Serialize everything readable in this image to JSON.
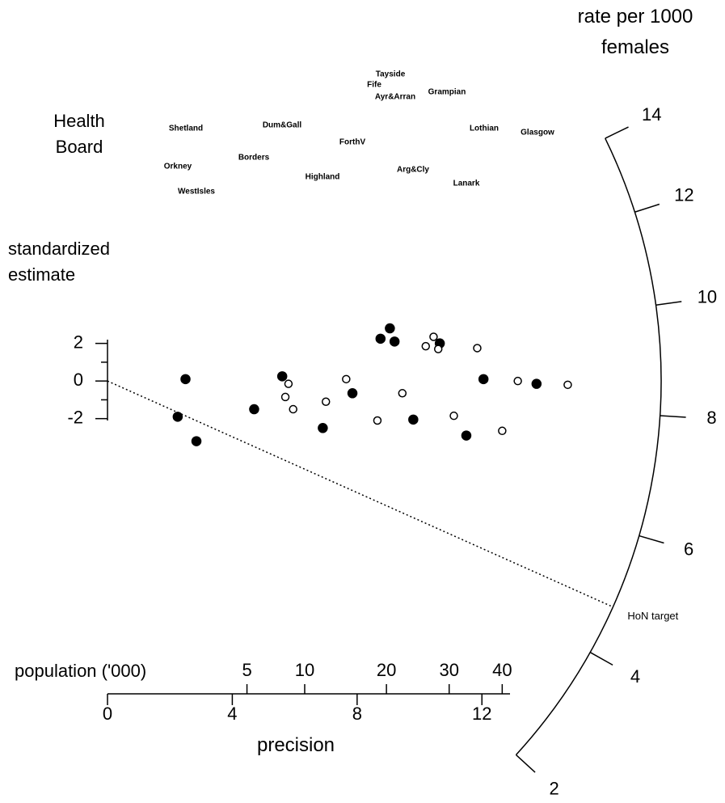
{
  "chart_data": {
    "type": "radial",
    "title": "rate per 1000 females",
    "row_label": "Health Board",
    "ylabel": "standardized estimate",
    "xlabel": "precision",
    "x2label": "population ('000)",
    "categories": [
      "Shetland",
      "Orkney",
      "WestIsles",
      "Borders",
      "Dum&Gall",
      "Highland",
      "ForthV",
      "Fife",
      "Tayside",
      "Ayr&Arran",
      "Arg&Cly",
      "Grampian",
      "Lanark",
      "Lothian",
      "Glasgow"
    ],
    "series": [
      {
        "marker": "filled",
        "color": "#000000",
        "x": [
          2.25,
          2.5,
          2.85,
          4.7,
          5.6,
          6.9,
          7.85,
          8.75,
          9.05,
          9.2,
          9.8,
          10.65,
          11.5,
          12.05,
          13.75
        ],
        "values": [
          -1.9,
          0.1,
          -3.2,
          -1.5,
          0.25,
          -2.5,
          -0.65,
          2.25,
          2.8,
          2.1,
          -2.05,
          2.0,
          -2.9,
          0.1,
          -0.15
        ]
      },
      {
        "marker": "open",
        "color": "#000000",
        "x": [
          5.8,
          5.7,
          5.95,
          7.0,
          7.65,
          8.65,
          9.45,
          10.2,
          10.45,
          10.6,
          11.1,
          11.85,
          12.65,
          13.15,
          14.75
        ],
        "values": [
          -0.15,
          -0.85,
          -1.5,
          -1.1,
          0.1,
          -2.1,
          -0.65,
          1.85,
          2.35,
          1.7,
          -1.85,
          1.75,
          -2.65,
          0.0,
          -0.2
        ]
      }
    ],
    "xlim": [
      0,
      12.9
    ],
    "xticks": [
      0,
      4,
      8,
      12
    ],
    "x2ticks": [
      {
        "value": 4.47,
        "label": "5"
      },
      {
        "value": 6.32,
        "label": "10"
      },
      {
        "value": 8.94,
        "label": "20"
      },
      {
        "value": 10.95,
        "label": "30"
      },
      {
        "value": 12.65,
        "label": "40"
      }
    ],
    "ylim": [
      -2.1,
      2.2
    ],
    "yticks": [
      -2,
      0,
      2
    ],
    "yminor": [
      -1,
      1
    ],
    "rticks": [
      2,
      4,
      6,
      8,
      10,
      12,
      14
    ],
    "rcenter": 8.6,
    "rscale": "sqrt",
    "target": {
      "label": "HoN target",
      "value": 4.8
    }
  }
}
